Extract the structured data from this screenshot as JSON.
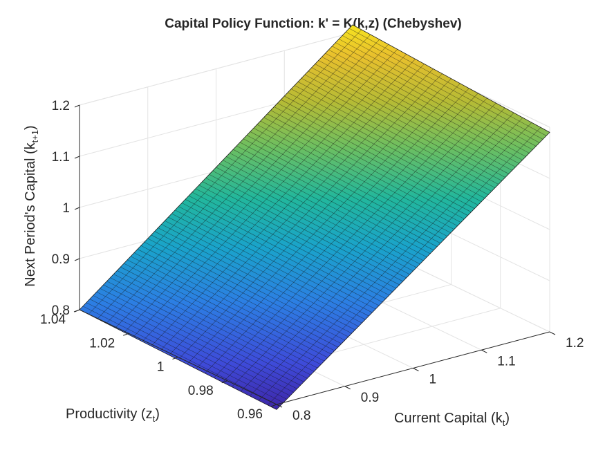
{
  "chart_data": {
    "type": "surface",
    "title": "Capital Policy Function: k' = K(k,z) (Chebyshev)",
    "xlabel": {
      "main": "Current  Capital  (k",
      "sub": "t",
      "close": ")"
    },
    "ylabel": {
      "main": "Productivity  (z",
      "sub": "t",
      "close": ")"
    },
    "zlabel": {
      "main": "Next  Period's  Capital  (k",
      "sub": "t+1",
      "close": ")"
    },
    "xlim": [
      0.8,
      1.2
    ],
    "ylim": [
      0.96,
      1.04
    ],
    "zlim": [
      0.8,
      1.2
    ],
    "x_ticks": [
      {
        "value": 0.8,
        "label": "0.8"
      },
      {
        "value": 0.9,
        "label": "0.9"
      },
      {
        "value": 1.0,
        "label": "1"
      },
      {
        "value": 1.1,
        "label": "1.1"
      },
      {
        "value": 1.2,
        "label": "1.2"
      }
    ],
    "y_ticks": [
      {
        "value": 0.96,
        "label": "0.96"
      },
      {
        "value": 0.98,
        "label": "0.98"
      },
      {
        "value": 1.0,
        "label": "1"
      },
      {
        "value": 1.02,
        "label": "1.02"
      },
      {
        "value": 1.04,
        "label": "1.04"
      }
    ],
    "z_ticks": [
      {
        "value": 0.8,
        "label": "0.8"
      },
      {
        "value": 0.9,
        "label": "0.9"
      },
      {
        "value": 1.0,
        "label": "1"
      },
      {
        "value": 1.1,
        "label": "1.1"
      },
      {
        "value": 1.2,
        "label": "1.2"
      }
    ],
    "surface_corners": {
      "k_min_z_min": 0.79,
      "k_min_z_max": 0.8,
      "k_max_z_min": 1.19,
      "k_max_z_max": 1.215
    },
    "grid": true,
    "colormap": [
      "#3e26a8",
      "#3e4bd9",
      "#2c7fe3",
      "#1aa3cb",
      "#22b79c",
      "#6cbf61",
      "#b6bb35",
      "#e9c02d",
      "#f5e41f"
    ]
  }
}
